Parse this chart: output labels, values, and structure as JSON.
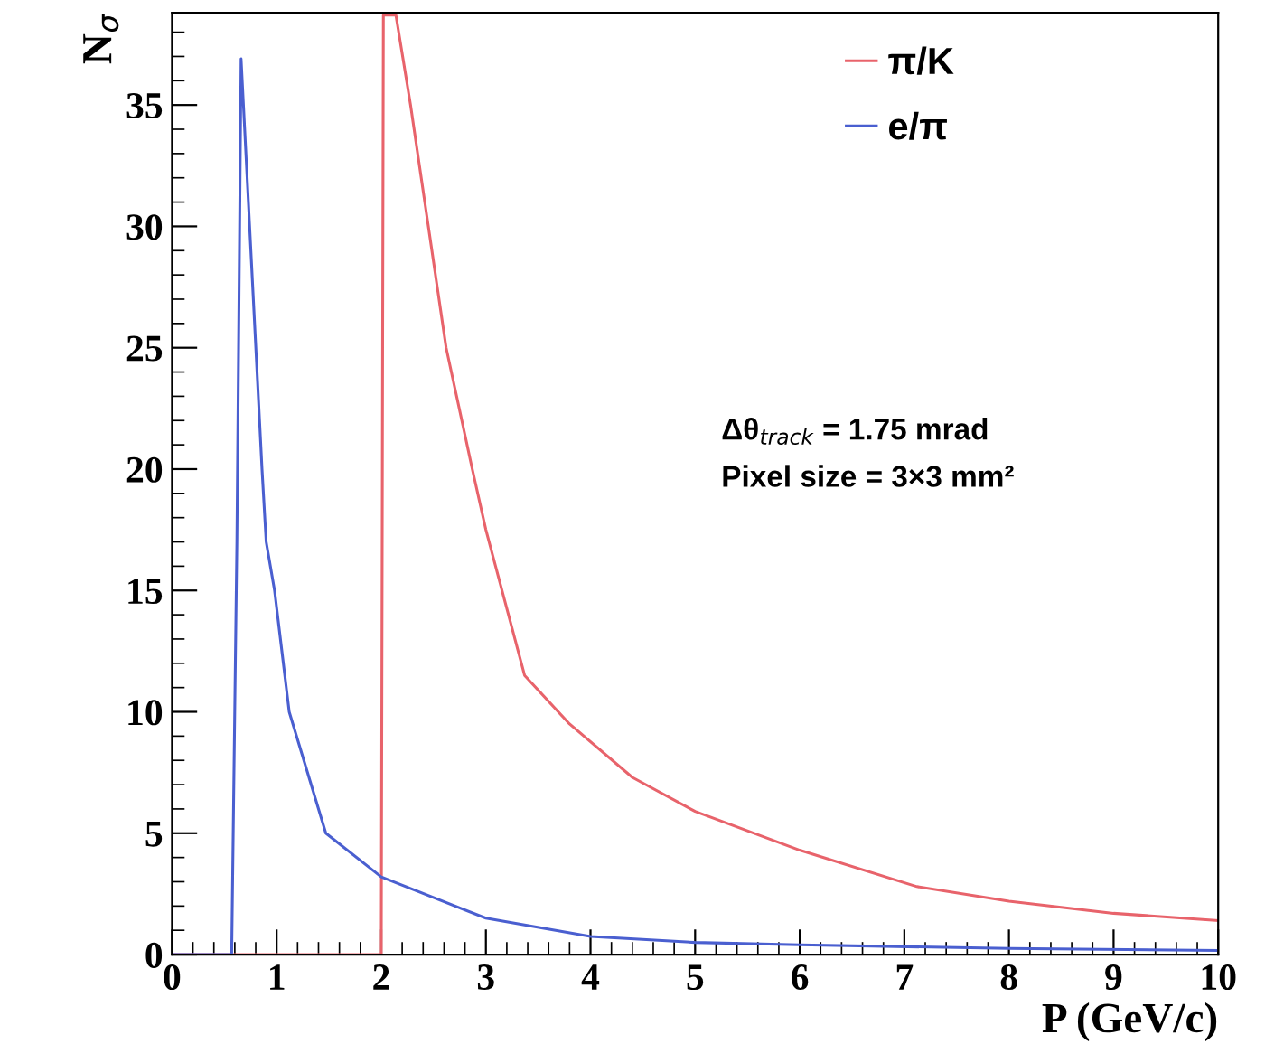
{
  "chart_data": {
    "type": "line",
    "xlabel": "P (GeV/c)",
    "ylabel": "N$_{σ}$",
    "series": [
      {
        "name": "π/K",
        "color": "#e8636b",
        "x": [
          0,
          2.0,
          2.02,
          2.14,
          2.28,
          2.45,
          2.62,
          2.87,
          3.0,
          3.37,
          3.8,
          4.4,
          5.0,
          6.0,
          7.12,
          8.0,
          9.0,
          10.0
        ],
        "values": [
          0,
          0,
          38.7,
          38.7,
          35,
          30,
          25,
          20,
          17.5,
          11.5,
          9.5,
          7.3,
          5.9,
          4.3,
          2.8,
          2.2,
          1.7,
          1.4
        ]
      },
      {
        "name": "e/π",
        "color": "#4a5fd0",
        "x": [
          0,
          0.57,
          0.62,
          0.66,
          0.86,
          0.9,
          0.98,
          1.12,
          1.47,
          2.0,
          3.0,
          4.0,
          5.0,
          6.0,
          8.0,
          10.0
        ],
        "values": [
          0,
          0,
          17,
          36.9,
          20,
          17,
          15,
          10,
          5,
          3.2,
          1.5,
          0.75,
          0.5,
          0.4,
          0.25,
          0.17
        ]
      }
    ],
    "xlim": [
      0,
      10
    ],
    "ylim": [
      0,
      38.8
    ],
    "xticks": [
      0,
      1,
      2,
      3,
      4,
      5,
      6,
      7,
      8,
      9,
      10
    ],
    "yticks": [
      0,
      5,
      10,
      15,
      20,
      25,
      30,
      35
    ],
    "grid": false,
    "legend": "top right",
    "marker": "none",
    "line_style": "solid",
    "annotations": [
      "Δθ$_{track}$ = 1.75 mrad",
      "Pixel size = 3×3 mm²"
    ]
  }
}
